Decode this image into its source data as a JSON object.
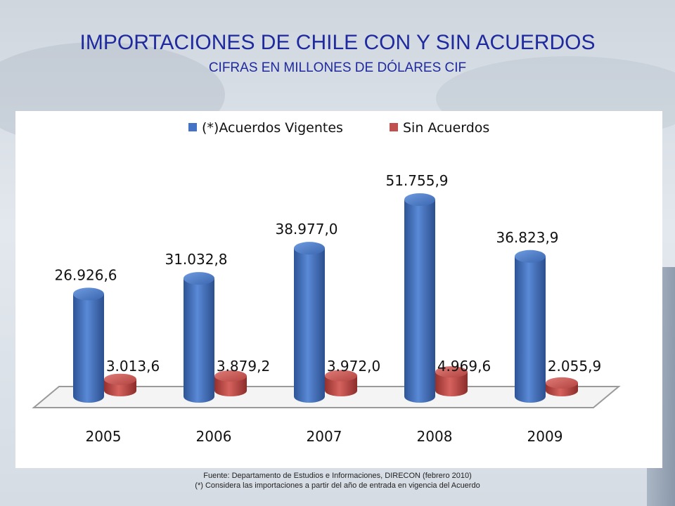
{
  "header": {
    "title": "IMPORTACIONES DE CHILE CON Y SIN ACUERDOS",
    "subtitle": "CIFRAS EN MILLONES DE DÓLARES CIF"
  },
  "footnotes": {
    "source": "Fuente: Departamento de Estudios e Informaciones, DIRECON  (febrero 2010)",
    "note": "(*) Considera las importaciones a partir del año de entrada en vigencia del Acuerdo"
  },
  "colors": {
    "title": "#1f2a9e",
    "series_blue": "#4472c4",
    "series_red": "#c0504d"
  },
  "chart_data": {
    "type": "bar",
    "categories": [
      "2005",
      "2006",
      "2007",
      "2008",
      "2009"
    ],
    "series": [
      {
        "name": "(*)Acuerdos Vigentes",
        "values": [
          26926.6,
          31032.8,
          38977.0,
          51755.9,
          36823.9
        ],
        "labels": [
          "26.926,6",
          "31.032,8",
          "38.977,0",
          "51.755,9",
          "36.823,9"
        ],
        "color": "#4472c4"
      },
      {
        "name": "Sin Acuerdos",
        "values": [
          3013.6,
          3879.2,
          3972.0,
          4969.6,
          2055.9
        ],
        "labels": [
          "3.013,6",
          "3.879,2",
          "3.972,0",
          "4.969,6",
          "2.055,9"
        ],
        "color": "#c0504d"
      }
    ],
    "legend": "top",
    "grid": false,
    "ylim": [
      0,
      55000
    ]
  }
}
